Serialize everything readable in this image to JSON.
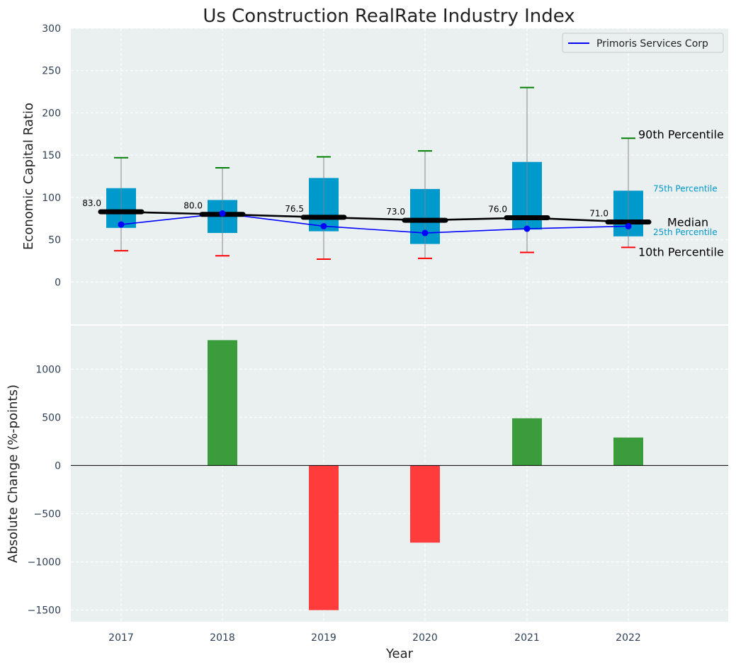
{
  "chart_data": [
    {
      "type": "boxplot",
      "title": "Us Construction RealRate Industry Index",
      "ylabel": "Economic Capital Ratio",
      "ylim": [
        -50,
        300
      ],
      "yticks": [
        0,
        50,
        100,
        150,
        200,
        250,
        300
      ],
      "categories": [
        "2017",
        "2018",
        "2019",
        "2020",
        "2021",
        "2022"
      ],
      "p10": [
        37,
        31,
        27,
        28,
        35,
        41
      ],
      "p25": [
        64,
        58,
        60,
        45,
        62,
        54
      ],
      "median": [
        83.0,
        80.0,
        76.5,
        73.0,
        76.0,
        71.0
      ],
      "median_labels": [
        "83.0",
        "80.0",
        "76.5",
        "73.0",
        "76.0",
        "71.0"
      ],
      "p75": [
        111,
        97,
        123,
        110,
        142,
        108
      ],
      "p90": [
        147,
        135,
        148,
        155,
        230,
        170
      ],
      "company_series": {
        "name": "Primoris Services Corp",
        "values": [
          68,
          81,
          66,
          58,
          63,
          66
        ]
      },
      "annotations": {
        "p90": "90th Percentile",
        "p75": "75th Percentile",
        "median": "Median",
        "p25": "25th Percentile",
        "p10": "10th Percentile"
      },
      "legend": "top-right"
    },
    {
      "type": "bar",
      "xlabel": "Year",
      "ylabel": "Absolute Change (%-points)",
      "ylim": [
        -1620,
        1450
      ],
      "yticks": [
        -1500,
        -1000,
        -500,
        0,
        500,
        1000
      ],
      "ytick_labels": [
        "−1500",
        "−1000",
        "−500",
        "0",
        "500",
        "1000"
      ],
      "categories": [
        "2017",
        "2018",
        "2019",
        "2020",
        "2021",
        "2022"
      ],
      "values": [
        0,
        1300,
        -1500,
        -800,
        490,
        290
      ]
    }
  ],
  "colors": {
    "plot_bg": "#eaeff0",
    "box": "#0099cc",
    "company_line": "#0000ff",
    "median_line": "#000000",
    "whisker_hi": "#008000",
    "whisker_lo": "#ff0000",
    "bar_pos": "#3a9c3a",
    "bar_neg": "#ff3b3b",
    "grid": "#ffffff"
  }
}
